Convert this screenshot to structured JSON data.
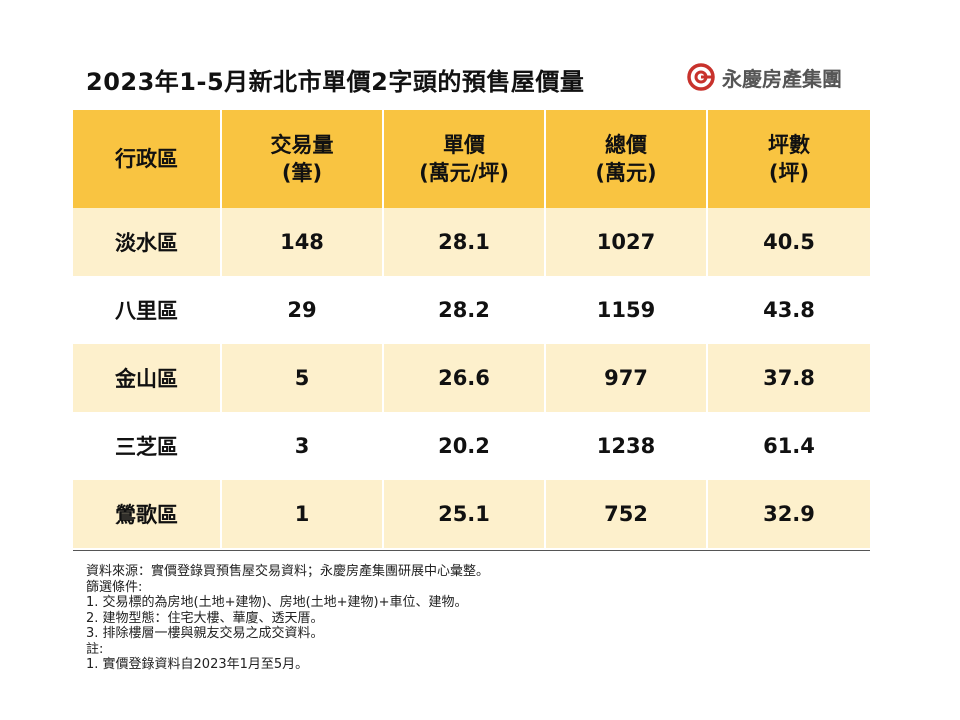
{
  "header": {
    "title": "2023年1-5月新北市單價2字頭的預售屋價量",
    "logo": "永慶房產集團"
  },
  "table": {
    "header": [
      [
        "行政區"
      ],
      [
        "交易量",
        "(筆)"
      ],
      [
        "單價",
        "(萬元/坪)"
      ],
      [
        "總價",
        "(萬元)"
      ],
      [
        "坪數",
        "(坪)"
      ]
    ],
    "rows": [
      [
        "淡水區",
        148,
        28.1,
        1027,
        40.5
      ],
      [
        "八里區",
        29,
        28.2,
        1159,
        43.8
      ],
      [
        "金山區",
        5,
        26.6,
        977,
        37.8
      ],
      [
        "三芝區",
        3,
        20.2,
        1238,
        61.4
      ],
      [
        "鶯歌區",
        1,
        25.1,
        752,
        32.9
      ]
    ]
  },
  "notes": [
    "資料來源：實價登錄買預售屋交易資料；永慶房產集團研展中心彙整。",
    "篩選條件:",
    "1. 交易標的為房地(土地+建物)、房地(土地+建物)+車位、建物。",
    "2. 建物型態：住宅大樓、華廈、透天厝。",
    "3. 排除樓層一樓與親友交易之成交資料。",
    "註:",
    "1. 實價登錄資料自2023年1月至5月。"
  ]
}
